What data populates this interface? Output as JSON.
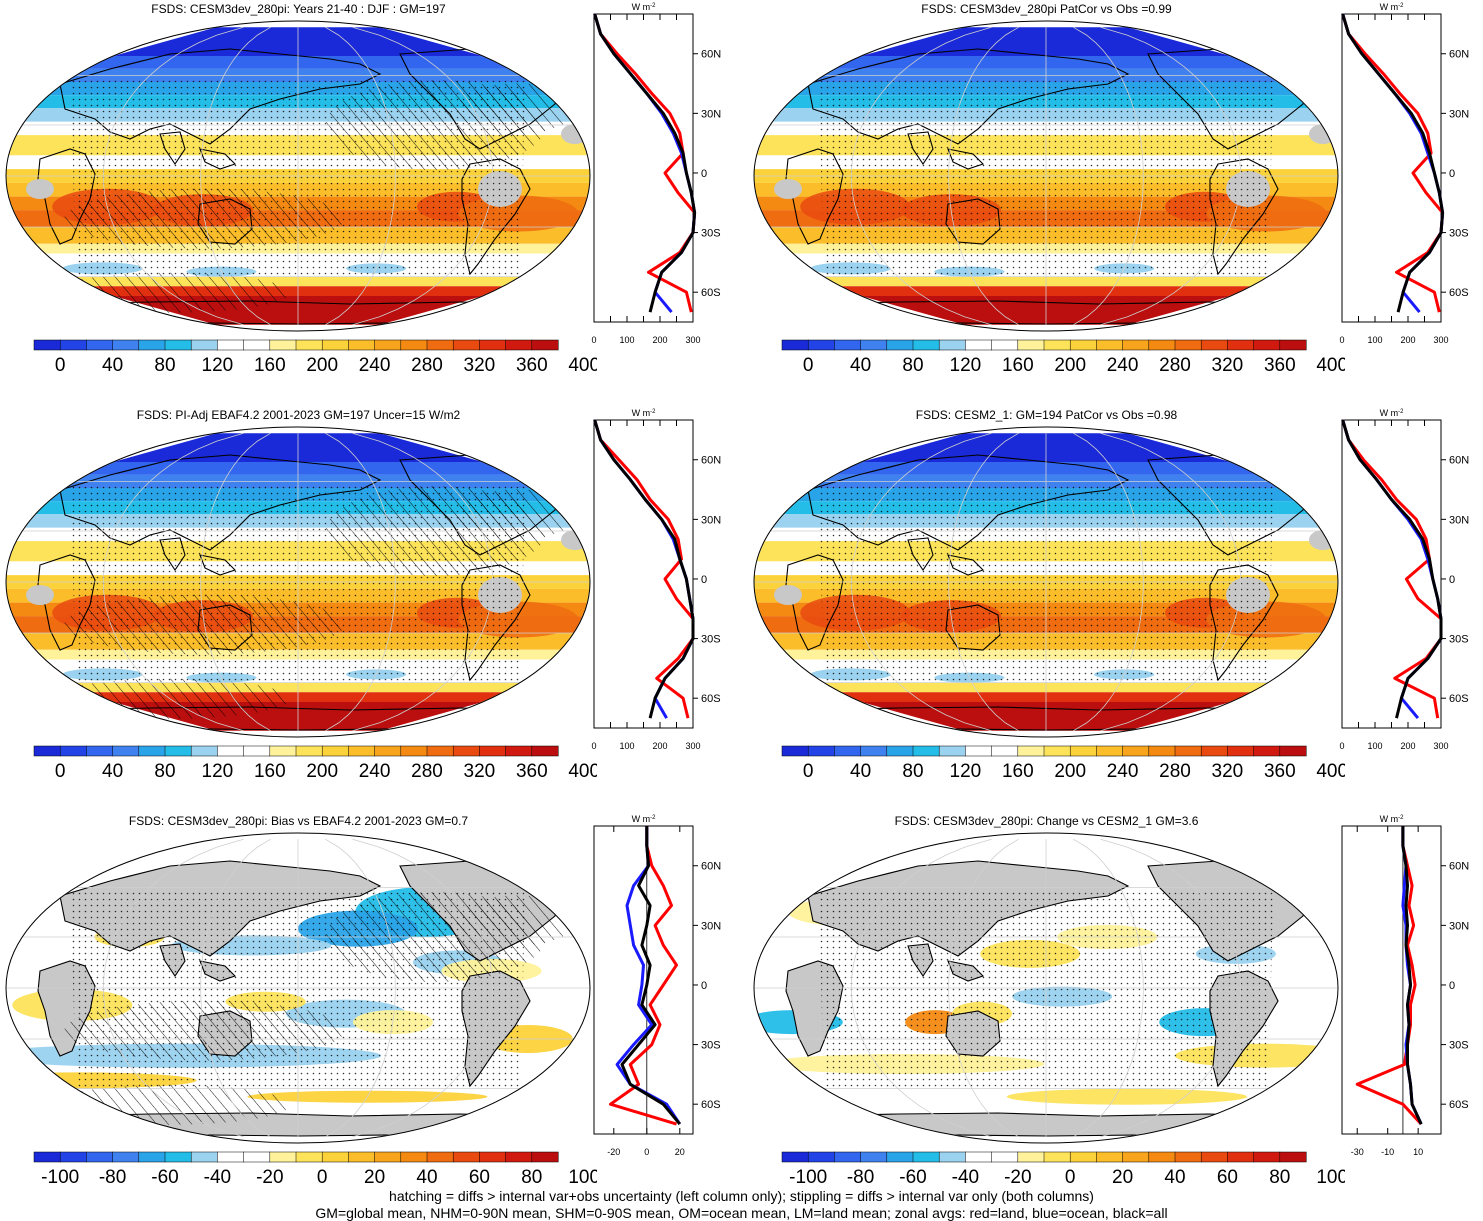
{
  "panels": [
    {
      "title": "FSDS: CESM3dev_280pi: Years 21-40 : DJF : GM=197",
      "kind": "abs",
      "hatch": true,
      "stipple": true
    },
    {
      "title": "FSDS: CESM3dev_280pi PatCor vs Obs =0.99",
      "kind": "abs",
      "hatch": false,
      "stipple": true
    },
    {
      "title": "FSDS: PI-Adj EBAF4.2 2001-2023 GM=197 Uncer=15 W/m2",
      "kind": "abs",
      "hatch": true,
      "stipple": true
    },
    {
      "title": "FSDS: CESM2_1: GM=194 PatCor vs Obs =0.98",
      "kind": "abs",
      "hatch": false,
      "stipple": true
    },
    {
      "title": "FSDS: CESM3dev_280pi: Bias vs EBAF4.2 2001-2023 GM=0.7",
      "kind": "diff",
      "hatch": true,
      "stipple": true
    },
    {
      "title": "FSDS: CESM3dev_280pi: Change vs CESM2_1 GM=3.6",
      "kind": "diff",
      "hatch": false,
      "stipple": true
    }
  ],
  "colorbars": {
    "abs": {
      "labels": [
        "0",
        "40",
        "80",
        "120",
        "160",
        "200",
        "240",
        "280",
        "320",
        "360",
        "400"
      ],
      "colors": [
        "#1a2ad8",
        "#2244e6",
        "#3366ee",
        "#3f82ef",
        "#2aa4e8",
        "#24bde8",
        "#9ad2ef",
        "#ffffff",
        "#ffffff",
        "#fff29a",
        "#fde35a",
        "#fcd23a",
        "#fbbd2a",
        "#f8a41c",
        "#f48a12",
        "#ef6c10",
        "#e94a10",
        "#e03010",
        "#d01a10",
        "#bb0f0f"
      ]
    },
    "diff": {
      "labels": [
        "-100",
        "-80",
        "-60",
        "-40",
        "-20",
        "0",
        "20",
        "40",
        "60",
        "80",
        "100"
      ],
      "colors": [
        "#1a2ad8",
        "#2244e6",
        "#3366ee",
        "#3f82ef",
        "#2aa4e8",
        "#24bde8",
        "#9ad2ef",
        "#ffffff",
        "#ffffff",
        "#fff29a",
        "#fde35a",
        "#fcd23a",
        "#fbbd2a",
        "#f8a41c",
        "#f48a12",
        "#ef6c10",
        "#e94a10",
        "#e03010",
        "#d01a10",
        "#bb0f0f"
      ]
    }
  },
  "zonal_axes": {
    "unit_label": "W m",
    "unit_exp": "-2",
    "lat_labels": [
      "60N",
      "30N",
      "0",
      "30S",
      "60S"
    ],
    "abs_ticks": [
      "0",
      "100",
      "200",
      "300"
    ],
    "bias_ticks": [
      "-20",
      "0",
      "20"
    ],
    "change_ticks": [
      "-30",
      "-10",
      "10"
    ]
  },
  "zonal_colors": {
    "land": "#ff0000",
    "ocean": "#1a1aff",
    "all": "#000000"
  },
  "footer": [
    "hatching = diffs > internal var+obs uncertainty (left column only); stippling = diffs > internal var only (both columns)",
    "GM=global mean, NHM=0-90N mean, SHM=0-90S mean, OM=ocean mean, LM=land mean; zonal avgs: red=land, blue=ocean, black=all"
  ],
  "chart_data": {
    "type": "line",
    "variable": "FSDS",
    "lat_ticks": [
      "60N",
      "30N",
      "0",
      "30S",
      "60S"
    ],
    "zonal_profiles": [
      {
        "panel": "FSDS: CESM3dev_280pi: Years 21-40 : DJF : GM=197",
        "lat": [
          80,
          70,
          60,
          50,
          40,
          30,
          20,
          10,
          0,
          -10,
          -20,
          -30,
          -40,
          -50,
          -60,
          -70
        ],
        "all": [
          2,
          20,
          60,
          110,
          160,
          210,
          245,
          270,
          280,
          295,
          305,
          300,
          265,
          205,
          185,
          170
        ],
        "ocean": [
          2,
          20,
          60,
          110,
          160,
          205,
          240,
          265,
          280,
          295,
          305,
          300,
          265,
          205,
          185,
          235
        ],
        "land": [
          2,
          20,
          70,
          125,
          175,
          230,
          260,
          270,
          215,
          255,
          305,
          300,
          260,
          165,
          280,
          295
        ]
      },
      {
        "panel": "FSDS: CESM3dev_280pi PatCor vs Obs =0.99",
        "lat": [
          80,
          70,
          60,
          50,
          40,
          30,
          20,
          10,
          0,
          -10,
          -20,
          -30,
          -40,
          -50,
          -60,
          -70
        ],
        "all": [
          2,
          20,
          60,
          110,
          160,
          210,
          245,
          265,
          280,
          295,
          305,
          300,
          265,
          205,
          185,
          170
        ],
        "ocean": [
          2,
          20,
          60,
          110,
          160,
          205,
          240,
          260,
          280,
          295,
          305,
          300,
          265,
          205,
          185,
          235
        ],
        "land": [
          2,
          20,
          70,
          125,
          175,
          230,
          260,
          270,
          215,
          255,
          305,
          300,
          260,
          165,
          280,
          295
        ]
      },
      {
        "panel": "FSDS: PI-Adj EBAF4.2 2001-2023 GM=197 Uncer=15 W/m2",
        "lat": [
          80,
          70,
          60,
          50,
          40,
          30,
          20,
          10,
          0,
          -10,
          -20,
          -30,
          -40,
          -50,
          -60,
          -70
        ],
        "all": [
          2,
          20,
          60,
          110,
          155,
          205,
          245,
          260,
          280,
          290,
          300,
          300,
          270,
          215,
          185,
          170
        ],
        "ocean": [
          2,
          20,
          60,
          110,
          155,
          205,
          240,
          260,
          280,
          290,
          300,
          300,
          270,
          215,
          185,
          220
        ],
        "land": [
          2,
          20,
          75,
          130,
          170,
          225,
          255,
          265,
          215,
          250,
          300,
          300,
          255,
          190,
          270,
          285
        ]
      },
      {
        "panel": "FSDS: CESM2_1: GM=194 PatCor vs Obs =0.98",
        "lat": [
          80,
          70,
          60,
          50,
          40,
          30,
          20,
          10,
          0,
          -10,
          -20,
          -30,
          -40,
          -50,
          -60,
          -70
        ],
        "all": [
          2,
          20,
          55,
          105,
          150,
          205,
          245,
          265,
          275,
          290,
          300,
          300,
          260,
          200,
          180,
          165
        ],
        "ocean": [
          2,
          20,
          55,
          105,
          150,
          200,
          240,
          260,
          275,
          290,
          300,
          300,
          260,
          200,
          180,
          230
        ],
        "land": [
          2,
          20,
          65,
          120,
          165,
          225,
          255,
          265,
          195,
          230,
          300,
          300,
          255,
          160,
          280,
          290
        ]
      },
      {
        "panel": "FSDS: CESM3dev_280pi: Bias vs EBAF4.2 2001-2023 GM=0.7",
        "lat": [
          80,
          70,
          60,
          50,
          40,
          30,
          20,
          10,
          0,
          -10,
          -20,
          -30,
          -40,
          -50,
          -60,
          -70
        ],
        "all": [
          0,
          0,
          1,
          -5,
          2,
          0,
          -3,
          2,
          0,
          -3,
          5,
          -5,
          -15,
          -10,
          10,
          20
        ],
        "ocean": [
          0,
          0,
          1,
          -8,
          -12,
          -10,
          -8,
          -2,
          -3,
          -5,
          3,
          -8,
          -18,
          -10,
          12,
          20
        ],
        "land": [
          0,
          0,
          3,
          10,
          15,
          5,
          10,
          18,
          10,
          2,
          8,
          3,
          -10,
          -5,
          -22,
          18
        ]
      },
      {
        "panel": "FSDS: CESM3dev_280pi: Change vs CESM2_1 GM=3.6",
        "lat": [
          80,
          70,
          60,
          50,
          40,
          30,
          20,
          10,
          0,
          -10,
          -20,
          -30,
          -40,
          -50,
          -60,
          -70
        ],
        "all": [
          0,
          0,
          2,
          3,
          2,
          3,
          2,
          4,
          5,
          3,
          4,
          3,
          3,
          5,
          6,
          12
        ],
        "ocean": [
          0,
          0,
          2,
          1,
          0,
          2,
          2,
          3,
          5,
          3,
          4,
          2,
          3,
          5,
          6,
          12
        ],
        "land": [
          0,
          0,
          3,
          6,
          4,
          7,
          3,
          6,
          8,
          5,
          5,
          3,
          1,
          -30,
          0,
          12
        ]
      }
    ]
  }
}
